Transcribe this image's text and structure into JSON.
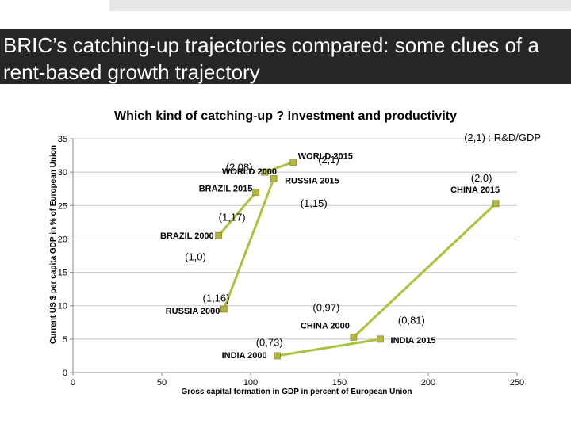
{
  "slide": {
    "title": "BRIC’s catching-up trajectories compared: some clues of a rent-based growth trajectory"
  },
  "chart_data": {
    "type": "scatter",
    "title": "Which kind of catching-up ? Investment and productivity",
    "xlabel": "Gross capital formation in GDP in percent of European Union",
    "ylabel": "Current US $ per capita GDP in % of European Union",
    "xlim": [
      0,
      250
    ],
    "ylim": [
      0,
      35
    ],
    "xticks": [
      0,
      50,
      100,
      150,
      200,
      250
    ],
    "yticks": [
      0,
      5,
      10,
      15,
      20,
      25,
      30,
      35
    ],
    "grid": "horizontal",
    "marker_color": "#b5b53c",
    "line_color": "#a8c43c",
    "legend_note": "(2,1) : R&D/GDP",
    "points": [
      {
        "label": "WORLD 2000",
        "x": 108,
        "y": 30
      },
      {
        "label": "WORLD 2015",
        "x": 124,
        "y": 31.5
      },
      {
        "label": "BRAZIL 2000",
        "x": 82,
        "y": 20.5
      },
      {
        "label": "BRAZIL 2015",
        "x": 103,
        "y": 27
      },
      {
        "label": "RUSSIA 2000",
        "x": 85,
        "y": 9.5
      },
      {
        "label": "RUSSIA 2015",
        "x": 113,
        "y": 29
      },
      {
        "label": "CHINA 2000",
        "x": 158,
        "y": 5.3
      },
      {
        "label": "CHINA 2015",
        "x": 238,
        "y": 25.3
      },
      {
        "label": "INDIA 2000",
        "x": 115,
        "y": 2.5
      },
      {
        "label": "INDIA 2015",
        "x": 173,
        "y": 5
      }
    ],
    "series": [
      {
        "from": "WORLD 2000",
        "to": "WORLD 2015"
      },
      {
        "from": "BRAZIL 2000",
        "to": "BRAZIL 2015"
      },
      {
        "from": "RUSSIA 2000",
        "to": "RUSSIA 2015"
      },
      {
        "from": "CHINA 2000",
        "to": "CHINA 2015"
      },
      {
        "from": "INDIA 2000",
        "to": "INDIA 2015"
      }
    ],
    "annotations": [
      {
        "text": "(2,08)",
        "x": 86,
        "y": 30.2
      },
      {
        "text": "(2,1)",
        "x": 138,
        "y": 31.3
      },
      {
        "text": "(1,17)",
        "x": 82,
        "y": 22.7
      },
      {
        "text": "(1,0)",
        "x": 63,
        "y": 16.8
      },
      {
        "text": "(1,15)",
        "x": 128,
        "y": 24.8
      },
      {
        "text": "(2,0)",
        "x": 224,
        "y": 28.6
      },
      {
        "text": "(1,16)",
        "x": 73,
        "y": 10.6
      },
      {
        "text": "(0,97)",
        "x": 135,
        "y": 9.2
      },
      {
        "text": "(0,81)",
        "x": 183,
        "y": 7.3
      },
      {
        "text": "(0,73)",
        "x": 103,
        "y": 4.0
      }
    ]
  }
}
